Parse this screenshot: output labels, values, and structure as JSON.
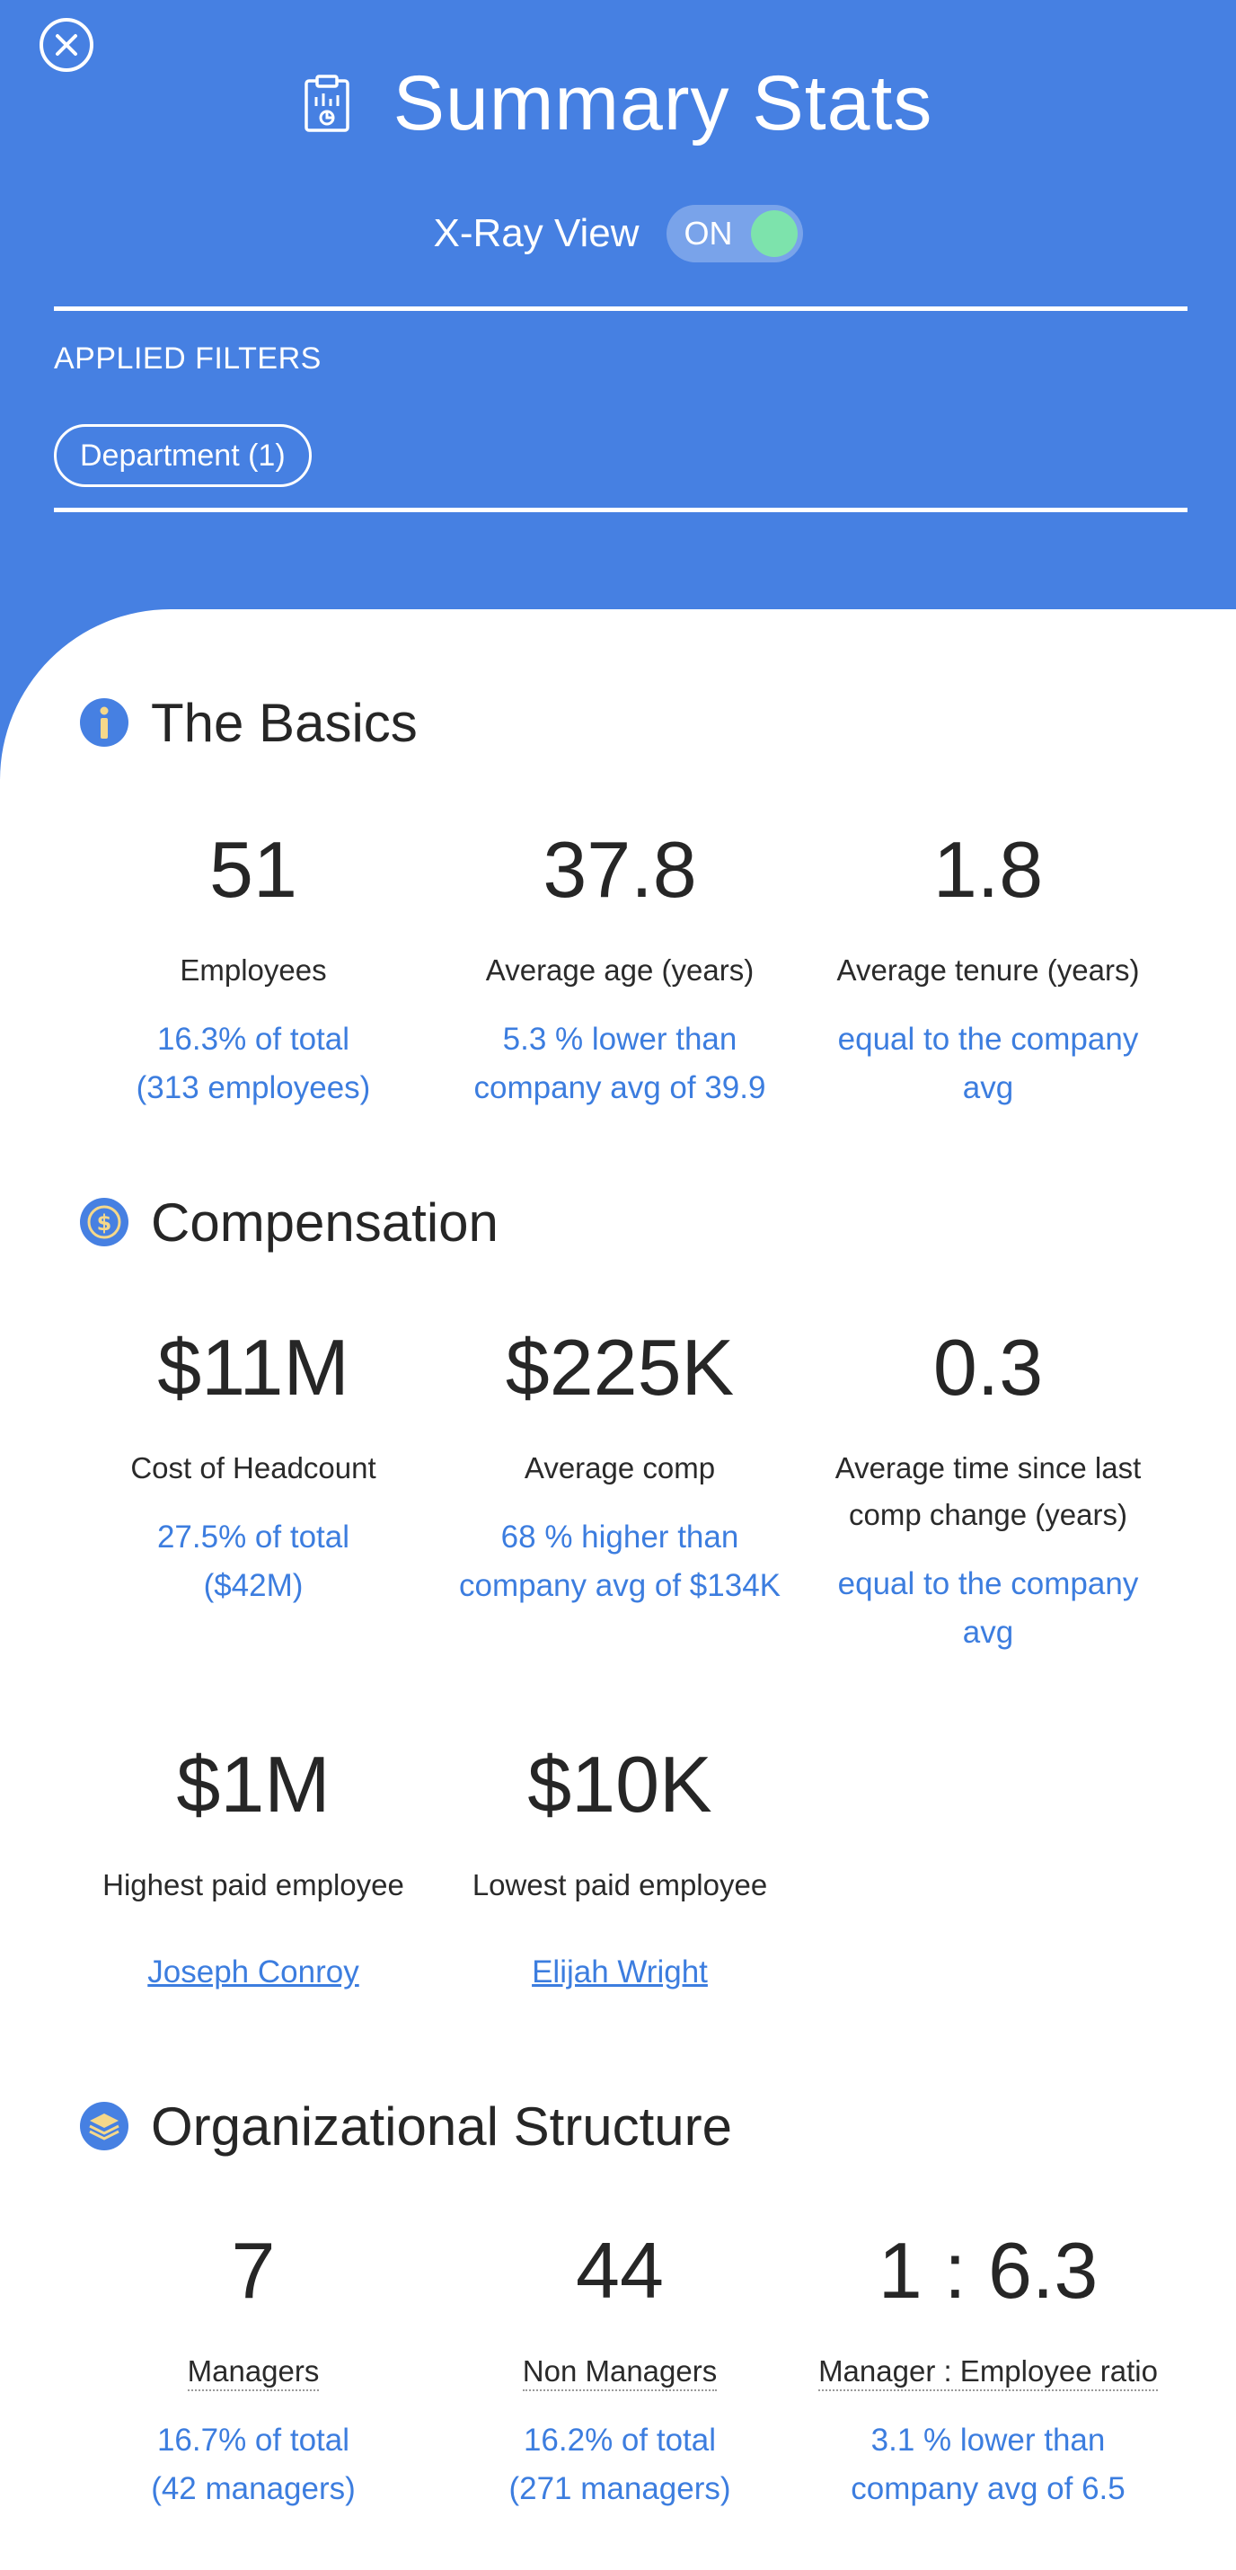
{
  "header": {
    "title": "Summary Stats",
    "xray_label": "X-Ray View",
    "xray_toggle": "ON",
    "filters_label": "APPLIED FILTERS",
    "filter_chip": "Department (1)"
  },
  "sections": {
    "basics": {
      "title": "The Basics",
      "stats": [
        {
          "value": "51",
          "label": "Employees",
          "note": [
            "16.3% of total",
            "(313 employees)"
          ]
        },
        {
          "value": "37.8",
          "label": "Average age (years)",
          "note": [
            "5.3 % lower than",
            "company avg of 39.9"
          ]
        },
        {
          "value": "1.8",
          "label": "Average tenure (years)",
          "note": [
            "equal to the company",
            "avg"
          ]
        }
      ]
    },
    "compensation": {
      "title": "Compensation",
      "stats": [
        {
          "value": "$11M",
          "label": "Cost of Headcount",
          "note": [
            "27.5% of total",
            "($42M)"
          ]
        },
        {
          "value": "$225K",
          "label": "Average comp",
          "note": [
            "68 % higher than",
            "company avg of $134K"
          ]
        },
        {
          "value": "0.3",
          "label": [
            "Average time since last",
            "comp change (years)"
          ],
          "note": [
            "equal to the company",
            "avg"
          ]
        },
        {
          "value": "$1M",
          "label": "Highest paid employee",
          "link": "Joseph Conroy"
        },
        {
          "value": "$10K",
          "label": "Lowest paid employee",
          "link": "Elijah Wright"
        }
      ]
    },
    "org": {
      "title": "Organizational Structure",
      "stats": [
        {
          "value": "7",
          "label": "Managers",
          "note": [
            "16.7% of total",
            "(42 managers)"
          ]
        },
        {
          "value": "44",
          "label": "Non Managers",
          "note": [
            "16.2% of total",
            "(271 managers)"
          ]
        },
        {
          "value": "1 : 6.3",
          "label": "Manager : Employee ratio",
          "note": [
            "3.1 % lower than",
            "company avg of 6.5"
          ]
        }
      ]
    }
  },
  "colors": {
    "header_bg": "#4680e2",
    "accent": "#3c7ddf",
    "toggle_on": "#7de3ac"
  },
  "icons": {
    "close": "close-circle-icon",
    "title": "clipboard-chart-icon",
    "basics": "info-icon",
    "compensation": "dollar-coin-icon",
    "org": "layers-icon"
  }
}
